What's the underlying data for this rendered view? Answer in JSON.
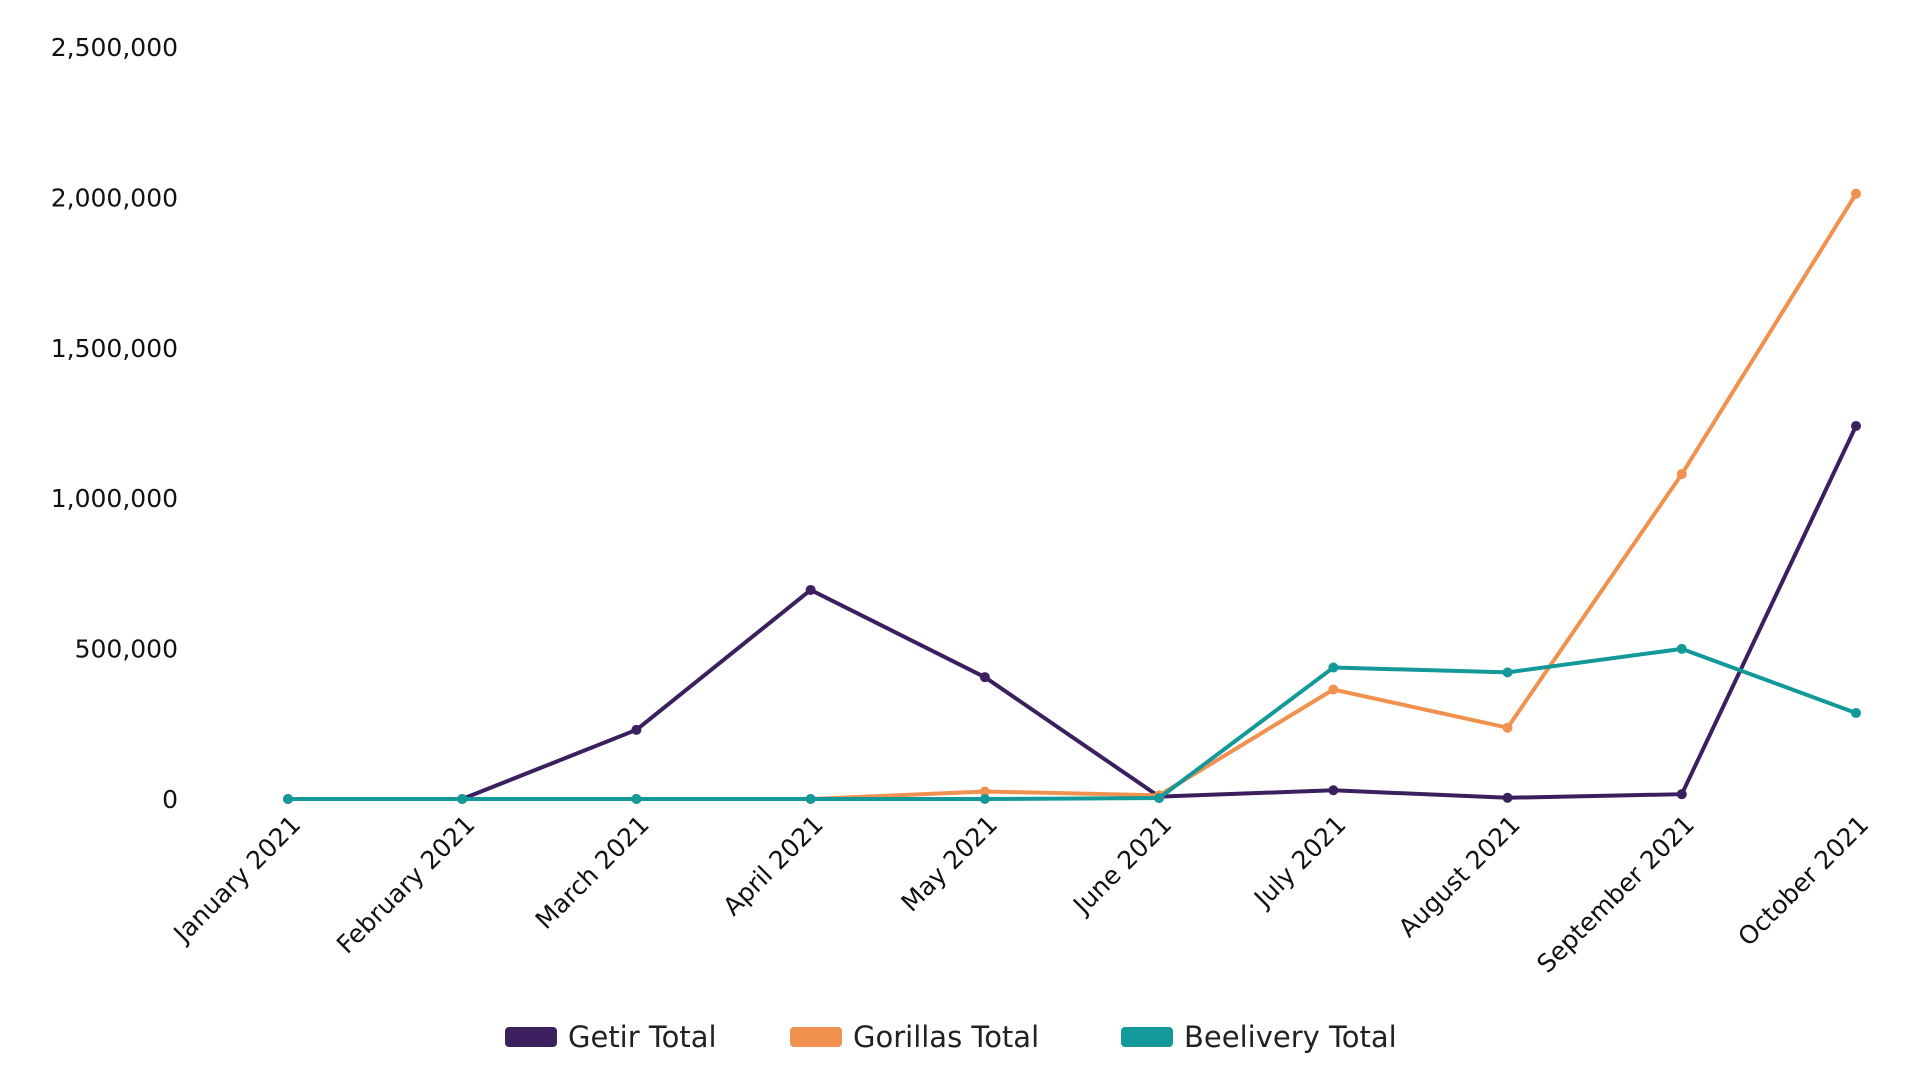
{
  "chart_data": {
    "type": "line",
    "title": "",
    "xlabel": "",
    "ylabel": "",
    "ylim": [
      0,
      2500000
    ],
    "yticks": [
      0,
      500000,
      1000000,
      1500000,
      2000000,
      2500000
    ],
    "ytick_labels": [
      "0",
      "500,000",
      "1,000,000",
      "1,500,000",
      "2,000,000",
      "2,500,000"
    ],
    "grid": false,
    "legend_position": "bottom-center",
    "categories": [
      "January 2021",
      "February 2021",
      "March 2021",
      "April 2021",
      "May 2021",
      "June 2021",
      "July 2021",
      "August 2021",
      "September 2021",
      "October 2021"
    ],
    "series": [
      {
        "name": "Getir Total",
        "color": "#3b1f5e",
        "values": [
          0,
          0,
          230000,
          695000,
          405000,
          8000,
          29000,
          4000,
          16000,
          1240000
        ]
      },
      {
        "name": "Gorillas Total",
        "color": "#f0914f",
        "values": [
          0,
          0,
          0,
          0,
          25000,
          12000,
          364000,
          237000,
          1080000,
          2012000
        ]
      },
      {
        "name": "Beelivery Total",
        "color": "#13999a",
        "values": [
          0,
          0,
          0,
          0,
          0,
          3000,
          437000,
          421000,
          499000,
          286000
        ]
      }
    ]
  }
}
